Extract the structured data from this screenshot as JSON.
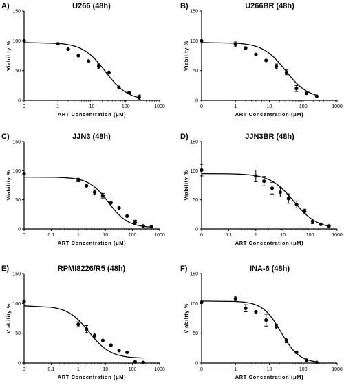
{
  "chart_data": [
    {
      "type": "scatter",
      "panel_letter": "A)",
      "title": "U266 (48h)",
      "xlabel": "ART Concentration (μM)",
      "ylabel": "Viability %",
      "x_scale": "log",
      "x_ticks": [
        "0",
        "1",
        "10",
        "100",
        "1000"
      ],
      "y_ticks": [
        "0",
        "50",
        "100",
        "150"
      ],
      "ylim": [
        0,
        150
      ],
      "fit": {
        "top": 97,
        "bottom": 0,
        "ec50": 25,
        "hill": 1.3
      },
      "series": [
        {
          "points": [
            {
              "x": 0,
              "y": 100,
              "err": 2
            },
            {
              "x": 1,
              "y": 95,
              "err": 2
            },
            {
              "x": 2,
              "y": 86,
              "err": 2
            },
            {
              "x": 4,
              "y": 75,
              "err": 2
            },
            {
              "x": 8,
              "y": 66,
              "err": 2
            },
            {
              "x": 16,
              "y": 57,
              "err": 4
            },
            {
              "x": 32,
              "y": 47,
              "err": 2
            },
            {
              "x": 63,
              "y": 22,
              "err": 2
            },
            {
              "x": 125,
              "y": 13,
              "err": 2
            },
            {
              "x": 250,
              "y": 5,
              "err": 4
            }
          ]
        }
      ]
    },
    {
      "type": "scatter",
      "panel_letter": "B)",
      "title": "U266BR (48h)",
      "xlabel": "ART Concentration (μM)",
      "ylabel": "Viability %",
      "x_scale": "log",
      "x_ticks": [
        "0",
        "1",
        "10",
        "100",
        "1000"
      ],
      "y_ticks": [
        "0",
        "50",
        "100",
        "150"
      ],
      "ylim": [
        0,
        150
      ],
      "fit": {
        "top": 97,
        "bottom": 3,
        "ec50": 30,
        "hill": 1.3
      },
      "series": [
        {
          "points": [
            {
              "x": 0,
              "y": 100,
              "err": 2
            },
            {
              "x": 1,
              "y": 94,
              "err": 4
            },
            {
              "x": 2,
              "y": 88,
              "err": 2
            },
            {
              "x": 4,
              "y": 77,
              "err": 2
            },
            {
              "x": 8,
              "y": 67,
              "err": 2
            },
            {
              "x": 16,
              "y": 57,
              "err": 4
            },
            {
              "x": 32,
              "y": 47,
              "err": 4
            },
            {
              "x": 63,
              "y": 20,
              "err": 5
            },
            {
              "x": 125,
              "y": 12,
              "err": 2
            },
            {
              "x": 250,
              "y": 7,
              "err": 2
            }
          ]
        }
      ]
    },
    {
      "type": "scatter",
      "panel_letter": "C)",
      "title": "JJN3 (48h)",
      "xlabel": "ART Concentration (μM)",
      "ylabel": "Viability %",
      "x_scale": "log",
      "x_ticks": [
        "0",
        "0.1",
        "1",
        "10",
        "100",
        "1000"
      ],
      "y_ticks": [
        "0",
        "50",
        "100",
        "150"
      ],
      "ylim": [
        0,
        150
      ],
      "fit": {
        "top": 89,
        "bottom": 2,
        "ec50": 13,
        "hill": 1.2
      },
      "series": [
        {
          "points": [
            {
              "x": 0,
              "y": 95,
              "err": 6
            },
            {
              "x": 1,
              "y": 84,
              "err": 3
            },
            {
              "x": 2,
              "y": 74,
              "err": 2
            },
            {
              "x": 4,
              "y": 63,
              "err": 4
            },
            {
              "x": 8,
              "y": 57,
              "err": 4
            },
            {
              "x": 16,
              "y": 45,
              "err": 2
            },
            {
              "x": 32,
              "y": 36,
              "err": 2
            },
            {
              "x": 63,
              "y": 22,
              "err": 2
            },
            {
              "x": 125,
              "y": 11,
              "err": 4
            },
            {
              "x": 250,
              "y": 5,
              "err": 2
            },
            {
              "x": 500,
              "y": 4,
              "err": 2
            }
          ]
        }
      ]
    },
    {
      "type": "scatter",
      "panel_letter": "D)",
      "title": "JJN3BR (48h)",
      "xlabel": "ART Concentration (μM)",
      "ylabel": "Viability %",
      "x_scale": "log",
      "x_ticks": [
        "0",
        "0.1",
        "1",
        "10",
        "100",
        "1000"
      ],
      "y_ticks": [
        "0",
        "50",
        "100",
        "150"
      ],
      "ylim": [
        0,
        150
      ],
      "fit": {
        "top": 95,
        "bottom": 0,
        "ec50": 25,
        "hill": 1.0
      },
      "series": [
        {
          "points": [
            {
              "x": 0,
              "y": 101,
              "err": 10
            },
            {
              "x": 1,
              "y": 91,
              "err": 10
            },
            {
              "x": 2,
              "y": 82,
              "err": 8
            },
            {
              "x": 4,
              "y": 70,
              "err": 10
            },
            {
              "x": 8,
              "y": 63,
              "err": 8
            },
            {
              "x": 16,
              "y": 52,
              "err": 8
            },
            {
              "x": 32,
              "y": 42,
              "err": 6
            },
            {
              "x": 63,
              "y": 30,
              "err": 4
            },
            {
              "x": 125,
              "y": 13,
              "err": 4
            },
            {
              "x": 250,
              "y": 8,
              "err": 2
            },
            {
              "x": 500,
              "y": 5,
              "err": 2
            }
          ]
        }
      ]
    },
    {
      "type": "scatter",
      "panel_letter": "E)",
      "title": "RPMI8226/R5 (48h)",
      "xlabel": "ART Concentration (μM)",
      "ylabel": "Viability %",
      "x_scale": "log",
      "x_ticks": [
        "0",
        "0.1",
        "1",
        "10",
        "100",
        "1000"
      ],
      "y_ticks": [
        "0",
        "50",
        "100",
        "150"
      ],
      "ylim": [
        0,
        150
      ],
      "fit": {
        "top": 96,
        "bottom": 8,
        "ec50": 2.5,
        "hill": 1.1
      },
      "series": [
        {
          "points": [
            {
              "x": 0,
              "y": 103,
              "err": 2
            },
            {
              "x": 1,
              "y": 65,
              "err": 4
            },
            {
              "x": 2,
              "y": 57,
              "err": 6
            },
            {
              "x": 4,
              "y": 46,
              "err": 4
            },
            {
              "x": 8,
              "y": 38,
              "err": 2
            },
            {
              "x": 16,
              "y": 30,
              "err": 2
            },
            {
              "x": 32,
              "y": 21,
              "err": 2
            },
            {
              "x": 63,
              "y": 18,
              "err": 2
            },
            {
              "x": 125,
              "y": 2,
              "err": 2
            },
            {
              "x": 250,
              "y": 1,
              "err": 2
            }
          ]
        }
      ]
    },
    {
      "type": "scatter",
      "panel_letter": "F)",
      "title": "INA-6 (48h)",
      "xlabel": "ART Concentration (μM)",
      "ylabel": "Viability %",
      "x_scale": "log",
      "x_ticks": [
        "0",
        "1",
        "10",
        "100",
        "1000"
      ],
      "y_ticks": [
        "0",
        "50",
        "100",
        "150"
      ],
      "ylim": [
        0,
        150
      ],
      "fit": {
        "top": 104,
        "bottom": 0,
        "ec50": 22,
        "hill": 1.6
      },
      "series": [
        {
          "points": [
            {
              "x": 0,
              "y": 102,
              "err": 2
            },
            {
              "x": 1,
              "y": 108,
              "err": 4
            },
            {
              "x": 2,
              "y": 92,
              "err": 6
            },
            {
              "x": 4,
              "y": 86,
              "err": 2
            },
            {
              "x": 8,
              "y": 72,
              "err": 10
            },
            {
              "x": 16,
              "y": 61,
              "err": 4
            },
            {
              "x": 32,
              "y": 38,
              "err": 4
            },
            {
              "x": 63,
              "y": 18,
              "err": 2
            },
            {
              "x": 125,
              "y": 5,
              "err": 2
            },
            {
              "x": 250,
              "y": 1,
              "err": 2
            }
          ]
        }
      ]
    }
  ]
}
